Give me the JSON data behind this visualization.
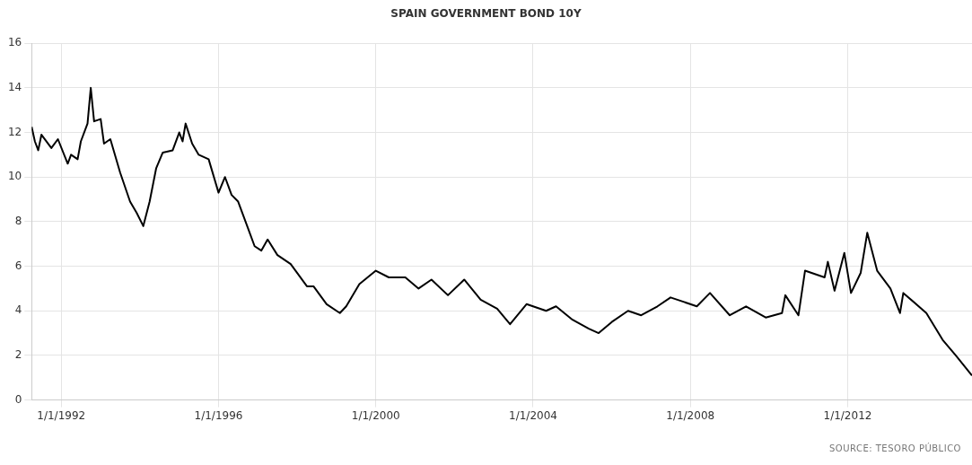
{
  "chart_data": {
    "type": "line",
    "title": "SPAIN GOVERNMENT BOND 10Y",
    "x": [
      "1991-04",
      "1991-05",
      "1991-06",
      "1991-07",
      "1991-10",
      "1991-12",
      "1992-03",
      "1992-04",
      "1992-06",
      "1992-07",
      "1992-09",
      "1992-10",
      "1992-11",
      "1993-01",
      "1993-02",
      "1993-04",
      "1993-07",
      "1993-10",
      "1993-12",
      "1994-02",
      "1994-04",
      "1994-06",
      "1994-08",
      "1994-11",
      "1995-01",
      "1995-02",
      "1995-03",
      "1995-05",
      "1995-07",
      "1995-10",
      "1996-01",
      "1996-03",
      "1996-05",
      "1996-07",
      "1996-10",
      "1996-12",
      "1997-02",
      "1997-04",
      "1997-07",
      "1997-11",
      "1998-04",
      "1998-06",
      "1998-10",
      "1999-02",
      "1999-04",
      "1999-08",
      "2000-01",
      "2000-05",
      "2000-10",
      "2001-02",
      "2001-06",
      "2001-11",
      "2002-04",
      "2002-09",
      "2003-02",
      "2003-06",
      "2003-11",
      "2004-05",
      "2004-08",
      "2005-01",
      "2005-06",
      "2005-09",
      "2006-01",
      "2006-06",
      "2006-10",
      "2007-03",
      "2007-07",
      "2008-03",
      "2008-07",
      "2009-01",
      "2009-06",
      "2009-12",
      "2010-05",
      "2010-06",
      "2010-10",
      "2010-12",
      "2011-06",
      "2011-07",
      "2011-09",
      "2011-12",
      "2012-02",
      "2012-05",
      "2012-07",
      "2012-10",
      "2013-02",
      "2013-05",
      "2013-06",
      "2014-01",
      "2014-06",
      "2014-10",
      "2015-03"
    ],
    "series": [
      {
        "color": "#000000",
        "values": [
          12.25,
          11.6,
          11.2,
          11.9,
          11.3,
          11.7,
          10.6,
          11.0,
          10.8,
          11.6,
          12.4,
          14.0,
          12.5,
          12.6,
          11.5,
          11.7,
          10.2,
          8.9,
          8.4,
          7.8,
          8.9,
          10.4,
          11.1,
          11.2,
          12.0,
          11.6,
          12.4,
          11.5,
          11.0,
          10.8,
          9.3,
          10.0,
          9.2,
          8.9,
          7.7,
          6.9,
          6.7,
          7.2,
          6.5,
          6.1,
          5.1,
          5.1,
          4.3,
          3.9,
          4.2,
          5.2,
          5.8,
          5.5,
          5.5,
          5.0,
          5.4,
          4.7,
          5.4,
          4.5,
          4.1,
          3.4,
          4.3,
          4.0,
          4.2,
          3.6,
          3.2,
          3.0,
          3.5,
          4.0,
          3.8,
          4.2,
          4.6,
          4.2,
          4.8,
          3.8,
          4.2,
          3.7,
          3.9,
          4.7,
          3.8,
          5.8,
          5.5,
          6.2,
          4.9,
          6.6,
          4.8,
          5.7,
          7.5,
          5.8,
          5.0,
          3.9,
          4.8,
          3.9,
          2.7,
          2.0,
          1.1
        ]
      }
    ],
    "xlim": [
      "1991-04",
      "2015-03"
    ],
    "xticks": [
      {
        "value": "1992-01-01",
        "label": "1/1/1992"
      },
      {
        "value": "1996-01-01",
        "label": "1/1/1996"
      },
      {
        "value": "2000-01-01",
        "label": "1/1/2000"
      },
      {
        "value": "2004-01-01",
        "label": "1/1/2004"
      },
      {
        "value": "2008-01-01",
        "label": "1/1/2008"
      },
      {
        "value": "2012-01-01",
        "label": "1/1/2012"
      }
    ],
    "ylim": [
      0,
      16
    ],
    "yticks": [
      0,
      2,
      4,
      6,
      8,
      10,
      12,
      14,
      16
    ],
    "grid": true,
    "marker": "none",
    "line_style": "solid",
    "annotations": [
      "SOURCE: TESORO PÚBLICO"
    ]
  }
}
